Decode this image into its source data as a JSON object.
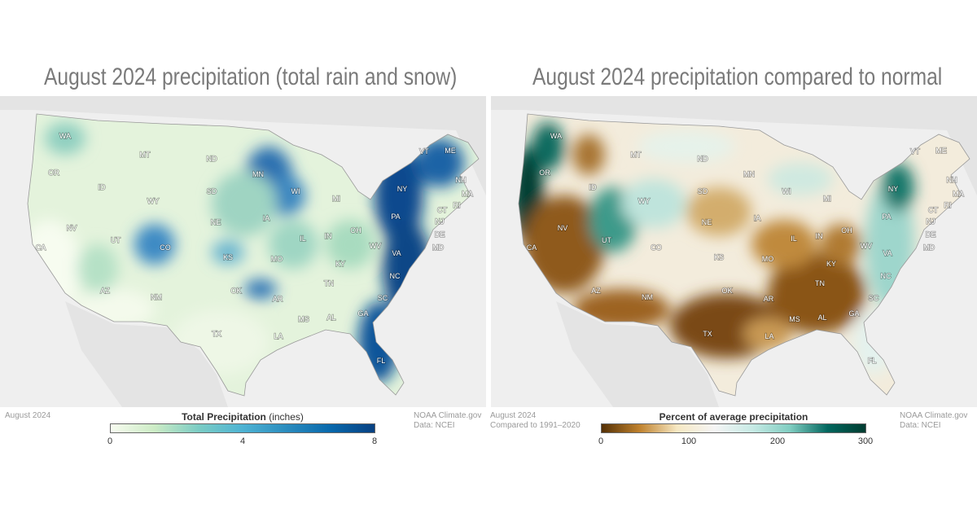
{
  "left": {
    "title": "August 2024 precipitation (total rain and snow)",
    "date": "August 2024",
    "credit": "NOAA Climate.gov",
    "source": "Data: NCEI",
    "legend": {
      "title_bold": "Total Precipitation",
      "title_unit": " (inches)",
      "ticks": [
        "0",
        "4",
        "8"
      ],
      "colors": [
        "#f7fcf0",
        "#ccebc5",
        "#7bccc4",
        "#4eb3d3",
        "#2b8cbe",
        "#0868ac",
        "#084081"
      ]
    }
  },
  "right": {
    "title": "August 2024 precipitation compared to normal",
    "date": "August 2024",
    "baseline": "Compared to 1991–2020",
    "credit": "NOAA Climate.gov",
    "source": "Data: NCEI",
    "legend": {
      "title": "Percent of average precipitation",
      "ticks": [
        "0",
        "100",
        "200",
        "300"
      ],
      "colors": [
        "#543005",
        "#bf812d",
        "#f6e8c3",
        "#f5f5f5",
        "#c7eae5",
        "#80cdc1",
        "#01665e",
        "#003c30"
      ]
    }
  },
  "states": [
    "WA",
    "OR",
    "ID",
    "MT",
    "WY",
    "ND",
    "SD",
    "NE",
    "KS",
    "OK",
    "TX",
    "NM",
    "AZ",
    "UT",
    "CO",
    "NV",
    "CA",
    "MN",
    "IA",
    "MO",
    "AR",
    "LA",
    "MS",
    "AL",
    "TN",
    "KY",
    "IL",
    "IN",
    "OH",
    "MI",
    "WI",
    "WV",
    "VA",
    "NC",
    "SC",
    "GA",
    "FL",
    "PA",
    "NY",
    "VT",
    "ME",
    "NH",
    "MA",
    "RI",
    "CT",
    "NJ",
    "DE",
    "MD"
  ]
}
